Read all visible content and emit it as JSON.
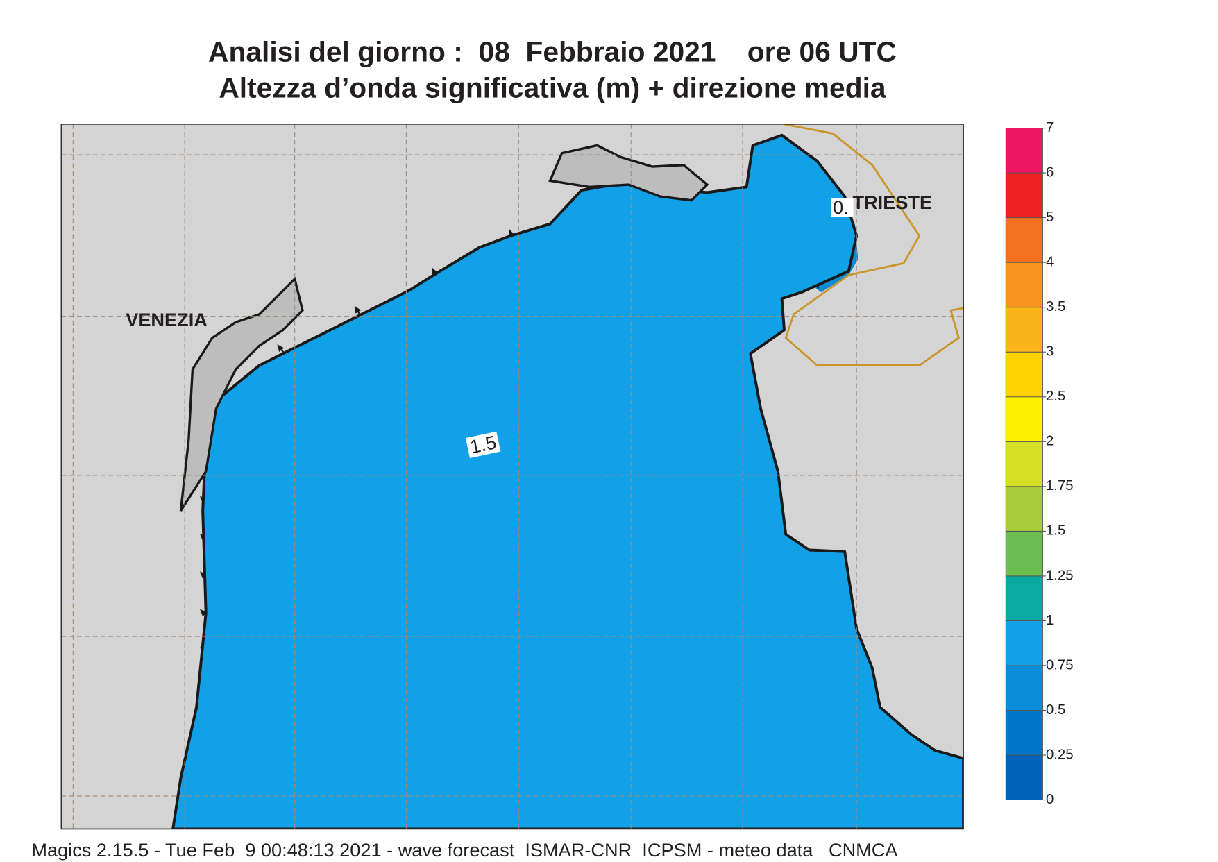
{
  "title": {
    "line1": "Analisi del giorno :  08  Febbraio 2021    ore 06 UTC",
    "line2": "Altezza d’onda significativa (m) + direzione media"
  },
  "map": {
    "places": [
      "VENEZIA",
      "TRIESTE"
    ],
    "contour_labels": [
      "1.5",
      "0."
    ]
  },
  "colorbar": {
    "levels": [
      0,
      0.25,
      0.5,
      0.75,
      1,
      1.25,
      1.5,
      1.75,
      2,
      2.5,
      3,
      3.5,
      4,
      5,
      6,
      7
    ],
    "colors": [
      "#0062b8",
      "#0077c8",
      "#0a8cd8",
      "#12a0e6",
      "#0aaaa0",
      "#6cbd50",
      "#a8cc3a",
      "#d6df28",
      "#fff200",
      "#fdd300",
      "#fbb41a",
      "#f7941d",
      "#f37021",
      "#ee2024",
      "#ec1562"
    ]
  },
  "footer": "Magics 2.15.5 - Tue Feb  9 00:48:13 2021 - wave forecast  ISMAR-CNR  ICPSM - meteo data   CNMCA"
}
